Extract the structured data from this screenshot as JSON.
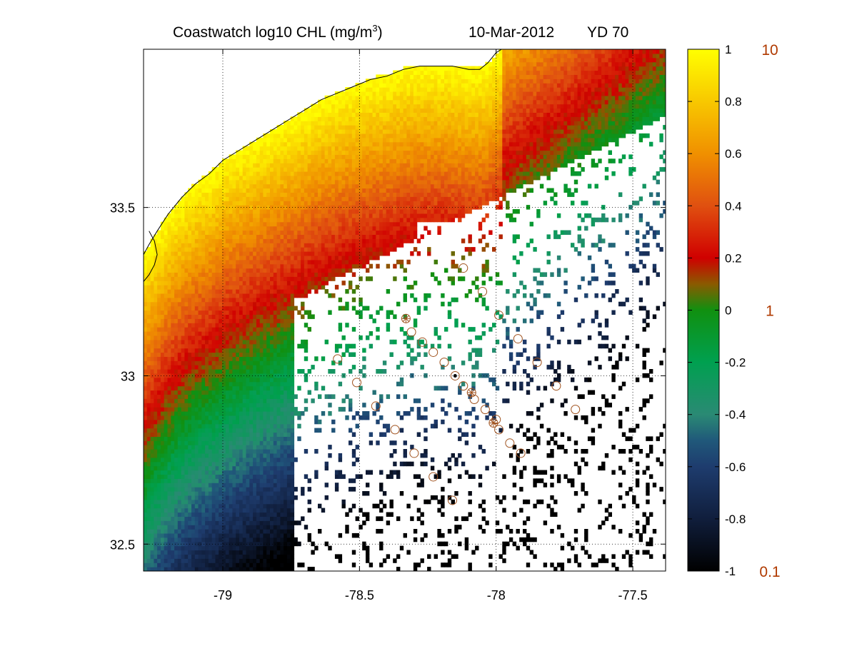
{
  "title": {
    "main": "Coastwatch  log10  CHL (mg/m",
    "sup": "3",
    "close": ")",
    "date": "10-Mar-2012",
    "yd": "YD 70"
  },
  "chart_data": {
    "type": "heatmap",
    "xlim": [
      -79.29,
      -77.38
    ],
    "ylim": [
      32.42,
      33.97
    ],
    "xticks": [
      -79,
      -78.5,
      -78,
      -77.5
    ],
    "xtick_labels": [
      "-79",
      "-78.5",
      "-78",
      "-77.5"
    ],
    "yticks": [
      32.5,
      33,
      33.5
    ],
    "ytick_labels": [
      "32.5",
      "33",
      "33.5"
    ],
    "grid": true,
    "grid_style": "dotted",
    "colorbar": {
      "min": -1,
      "max": 1,
      "ticks": [
        1,
        0.8,
        0.6,
        0.4,
        0.2,
        0,
        -0.2,
        -0.4,
        -0.6,
        -0.8,
        -1
      ],
      "tick_labels": [
        "1",
        "0.8",
        "0.6",
        "0.4",
        "0.2",
        "0",
        "-0.2",
        "-0.4",
        "-0.6",
        "-0.8",
        "-1"
      ],
      "right_labels": [
        {
          "value": 1,
          "label": "10"
        },
        {
          "value": 0,
          "label": "1"
        },
        {
          "value": -1,
          "label": "0.1"
        }
      ],
      "right_label_color": "#b03a00",
      "colormap": [
        {
          "v": -1.0,
          "c": "#000000"
        },
        {
          "v": -0.8,
          "c": "#101e3c"
        },
        {
          "v": -0.6,
          "c": "#1e3c6e"
        },
        {
          "v": -0.5,
          "c": "#20587a"
        },
        {
          "v": -0.4,
          "c": "#2a8a74"
        },
        {
          "v": -0.2,
          "c": "#00a050"
        },
        {
          "v": 0.0,
          "c": "#109010"
        },
        {
          "v": 0.1,
          "c": "#8a5a00"
        },
        {
          "v": 0.2,
          "c": "#d00000"
        },
        {
          "v": 0.4,
          "c": "#e05010"
        },
        {
          "v": 0.6,
          "c": "#f09000"
        },
        {
          "v": 0.8,
          "c": "#f8c800"
        },
        {
          "v": 1.0,
          "c": "#ffff00"
        }
      ]
    },
    "coastline": [
      [
        -79.29,
        33.36
      ],
      [
        -79.27,
        33.39
      ],
      [
        -79.24,
        33.43
      ],
      [
        -79.2,
        33.48
      ],
      [
        -79.15,
        33.53
      ],
      [
        -79.1,
        33.57
      ],
      [
        -79.05,
        33.6
      ],
      [
        -79.0,
        33.64
      ],
      [
        -78.94,
        33.67
      ],
      [
        -78.88,
        33.7
      ],
      [
        -78.82,
        33.73
      ],
      [
        -78.76,
        33.76
      ],
      [
        -78.7,
        33.79
      ],
      [
        -78.64,
        33.82
      ],
      [
        -78.58,
        33.84
      ],
      [
        -78.52,
        33.86
      ],
      [
        -78.46,
        33.88
      ],
      [
        -78.4,
        33.89
      ],
      [
        -78.34,
        33.91
      ],
      [
        -78.28,
        33.92
      ],
      [
        -78.22,
        33.92
      ],
      [
        -78.16,
        33.92
      ],
      [
        -78.1,
        33.91
      ],
      [
        -78.06,
        33.91
      ],
      [
        -78.03,
        33.93
      ],
      [
        -78.0,
        33.96
      ],
      [
        -77.98,
        33.97
      ]
    ],
    "inlet_outline": [
      [
        -79.29,
        33.28
      ],
      [
        -79.27,
        33.3
      ],
      [
        -79.25,
        33.33
      ],
      [
        -79.24,
        33.36
      ],
      [
        -79.25,
        33.4
      ],
      [
        -79.27,
        33.43
      ]
    ],
    "stations_circle": [
      [
        -78.12,
        33.32
      ],
      [
        -78.05,
        33.25
      ],
      [
        -77.99,
        33.18
      ],
      [
        -77.92,
        33.11
      ],
      [
        -77.85,
        33.04
      ],
      [
        -77.78,
        32.97
      ],
      [
        -77.71,
        32.9
      ],
      [
        -78.31,
        33.13
      ],
      [
        -78.27,
        33.1
      ],
      [
        -78.23,
        33.07
      ],
      [
        -78.19,
        33.04
      ],
      [
        -78.12,
        32.97
      ],
      [
        -78.08,
        32.93
      ],
      [
        -78.04,
        32.9
      ],
      [
        -78.0,
        32.87
      ],
      [
        -77.99,
        32.84
      ],
      [
        -77.95,
        32.8
      ],
      [
        -77.91,
        32.77
      ],
      [
        -78.58,
        33.05
      ],
      [
        -78.51,
        32.98
      ],
      [
        -78.44,
        32.91
      ],
      [
        -78.37,
        32.84
      ],
      [
        -78.3,
        32.77
      ],
      [
        -78.23,
        32.7
      ],
      [
        -78.16,
        32.63
      ]
    ],
    "stations_star": [
      [
        -78.33,
        33.17
      ],
      [
        -78.09,
        32.95
      ],
      [
        -78.01,
        32.86
      ]
    ],
    "station_dot": [
      [
        -78.15,
        33.0
      ]
    ],
    "station_color": "#a0521e"
  }
}
